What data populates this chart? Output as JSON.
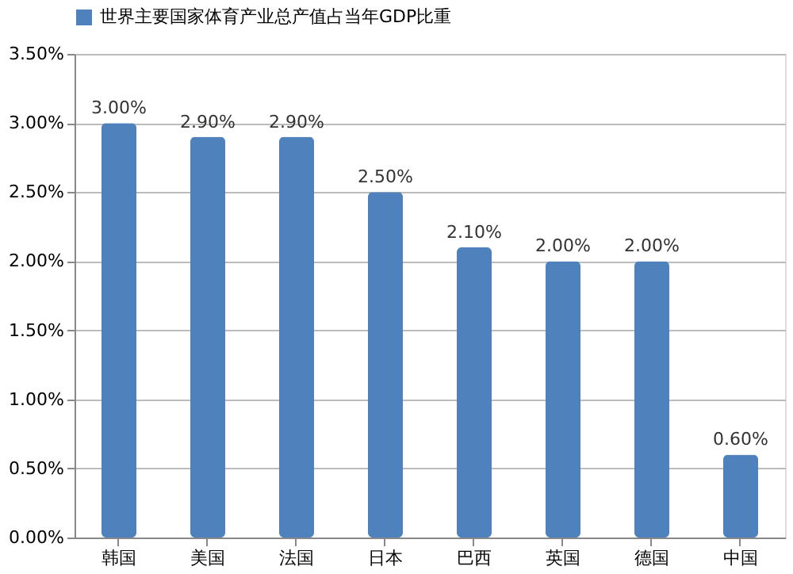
{
  "chart_data": {
    "type": "bar",
    "categories": [
      "韩国",
      "美国",
      "法国",
      "日本",
      "巴西",
      "英国",
      "德国",
      "中国"
    ],
    "series": [
      {
        "name": "世界主要国家体育产业总产值占当年GDP比重",
        "color": "#4f81bd",
        "values": [
          3.0,
          2.9,
          2.9,
          2.5,
          2.1,
          2.0,
          2.0,
          0.6
        ]
      }
    ],
    "value_labels": [
      "3.00%",
      "2.90%",
      "2.90%",
      "2.50%",
      "2.10%",
      "2.00%",
      "2.00%",
      "0.60%"
    ],
    "ylim": [
      0,
      3.5
    ],
    "yticks": [
      {
        "value": 0,
        "label": "0.00%"
      },
      {
        "value": 0.5,
        "label": "0.50%"
      },
      {
        "value": 1,
        "label": "1.00%"
      },
      {
        "value": 1.5,
        "label": "1.50%"
      },
      {
        "value": 2,
        "label": "2.00%"
      },
      {
        "value": 2.5,
        "label": "2.50%"
      },
      {
        "value": 3,
        "label": "3.00%"
      },
      {
        "value": 3.5,
        "label": "3.50%"
      }
    ],
    "grid": "y",
    "legend": "top"
  }
}
